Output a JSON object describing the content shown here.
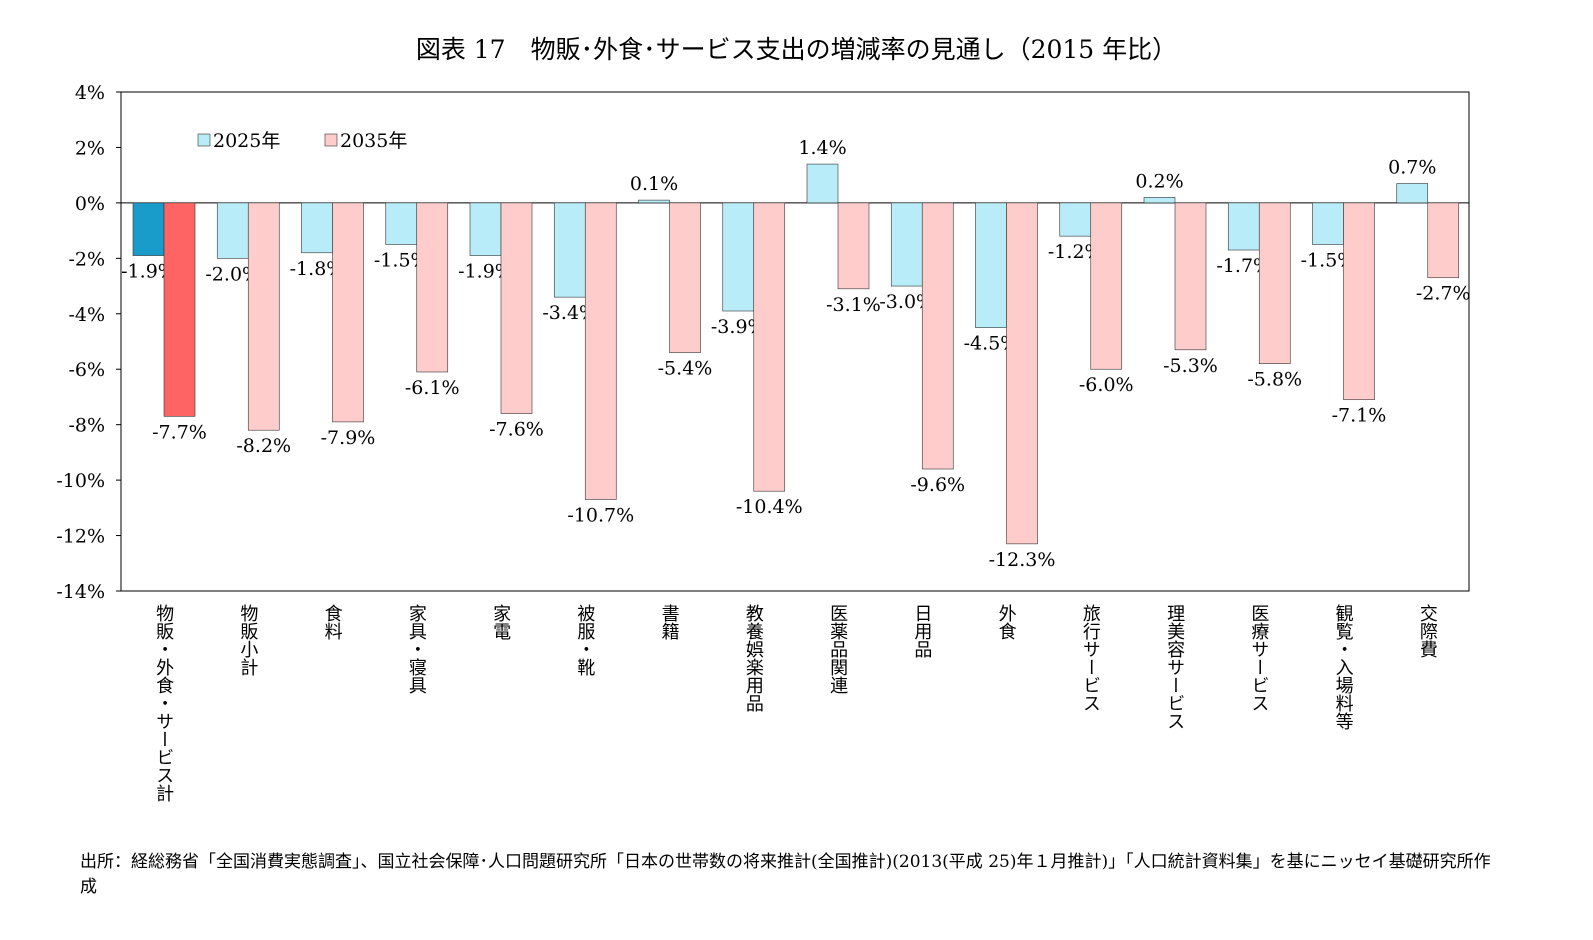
{
  "chart_data": {
    "type": "bar",
    "title": "図表 17　物販･外食･サービス支出の増減率の見通し（2015 年比）",
    "categories": [
      "物販・外食・サービス計",
      "物販小計",
      "食料",
      "家具・寝具",
      "家電",
      "被服・靴",
      "書籍",
      "教養娯楽用品",
      "医薬品関連",
      "日用品",
      "外食",
      "旅行サービス",
      "理美容サービス",
      "医療サービス",
      "観覧・入場料等",
      "交際費"
    ],
    "series": [
      {
        "name": "2025年",
        "values": [
          -1.9,
          -2.0,
          -1.8,
          -1.5,
          -1.9,
          -3.4,
          0.1,
          -3.9,
          1.4,
          -3.0,
          -4.5,
          -1.2,
          0.2,
          -1.7,
          -1.5,
          0.7
        ],
        "labels": [
          "-1.9%",
          "-2.0%",
          "-1.8%",
          "-1.5%",
          "-1.9%",
          "-3.4%",
          "0.1%",
          "-3.9%",
          "1.4%",
          "-3.0%",
          "-4.5%",
          "-1.2%",
          "0.2%",
          "-1.7%",
          "-1.5%",
          "0.7%"
        ],
        "color": "#b7ecf8",
        "highlight_color": "#1a9ccb"
      },
      {
        "name": "2035年",
        "values": [
          -7.7,
          -8.2,
          -7.9,
          -6.1,
          -7.6,
          -10.7,
          -5.4,
          -10.4,
          -3.1,
          -9.6,
          -12.3,
          -6.0,
          -5.3,
          -5.8,
          -7.1,
          -2.7
        ],
        "labels": [
          "-7.7%",
          "-8.2%",
          "-7.9%",
          "-6.1%",
          "-7.6%",
          "-10.7%",
          "-5.4%",
          "-10.4%",
          "-3.1%",
          "-9.6%",
          "-12.3%",
          "-6.0%",
          "-5.3%",
          "-5.8%",
          "-7.1%",
          "-2.7%"
        ],
        "color": "#ffcccc",
        "highlight_color": "#ff6464"
      }
    ],
    "ylim": [
      -14,
      4
    ],
    "yticks": [
      "4%",
      "2%",
      "0%",
      "-2%",
      "-4%",
      "-6%",
      "-8%",
      "-10%",
      "-12%",
      "-14%"
    ],
    "ytick_values": [
      4,
      2,
      0,
      -2,
      -4,
      -6,
      -8,
      -10,
      -12,
      -14
    ],
    "grid": false,
    "legend_placement": "top-left",
    "xlabel": "",
    "ylabel": ""
  },
  "source": "出所：経総務省「全国消費実態調査」、国立社会保障･人口問題研究所「日本の世帯数の将来推計(全国推計)(2013(平成 25)年１月推計)」「人口統計資料集」を基にニッセイ基礎研究所作成"
}
